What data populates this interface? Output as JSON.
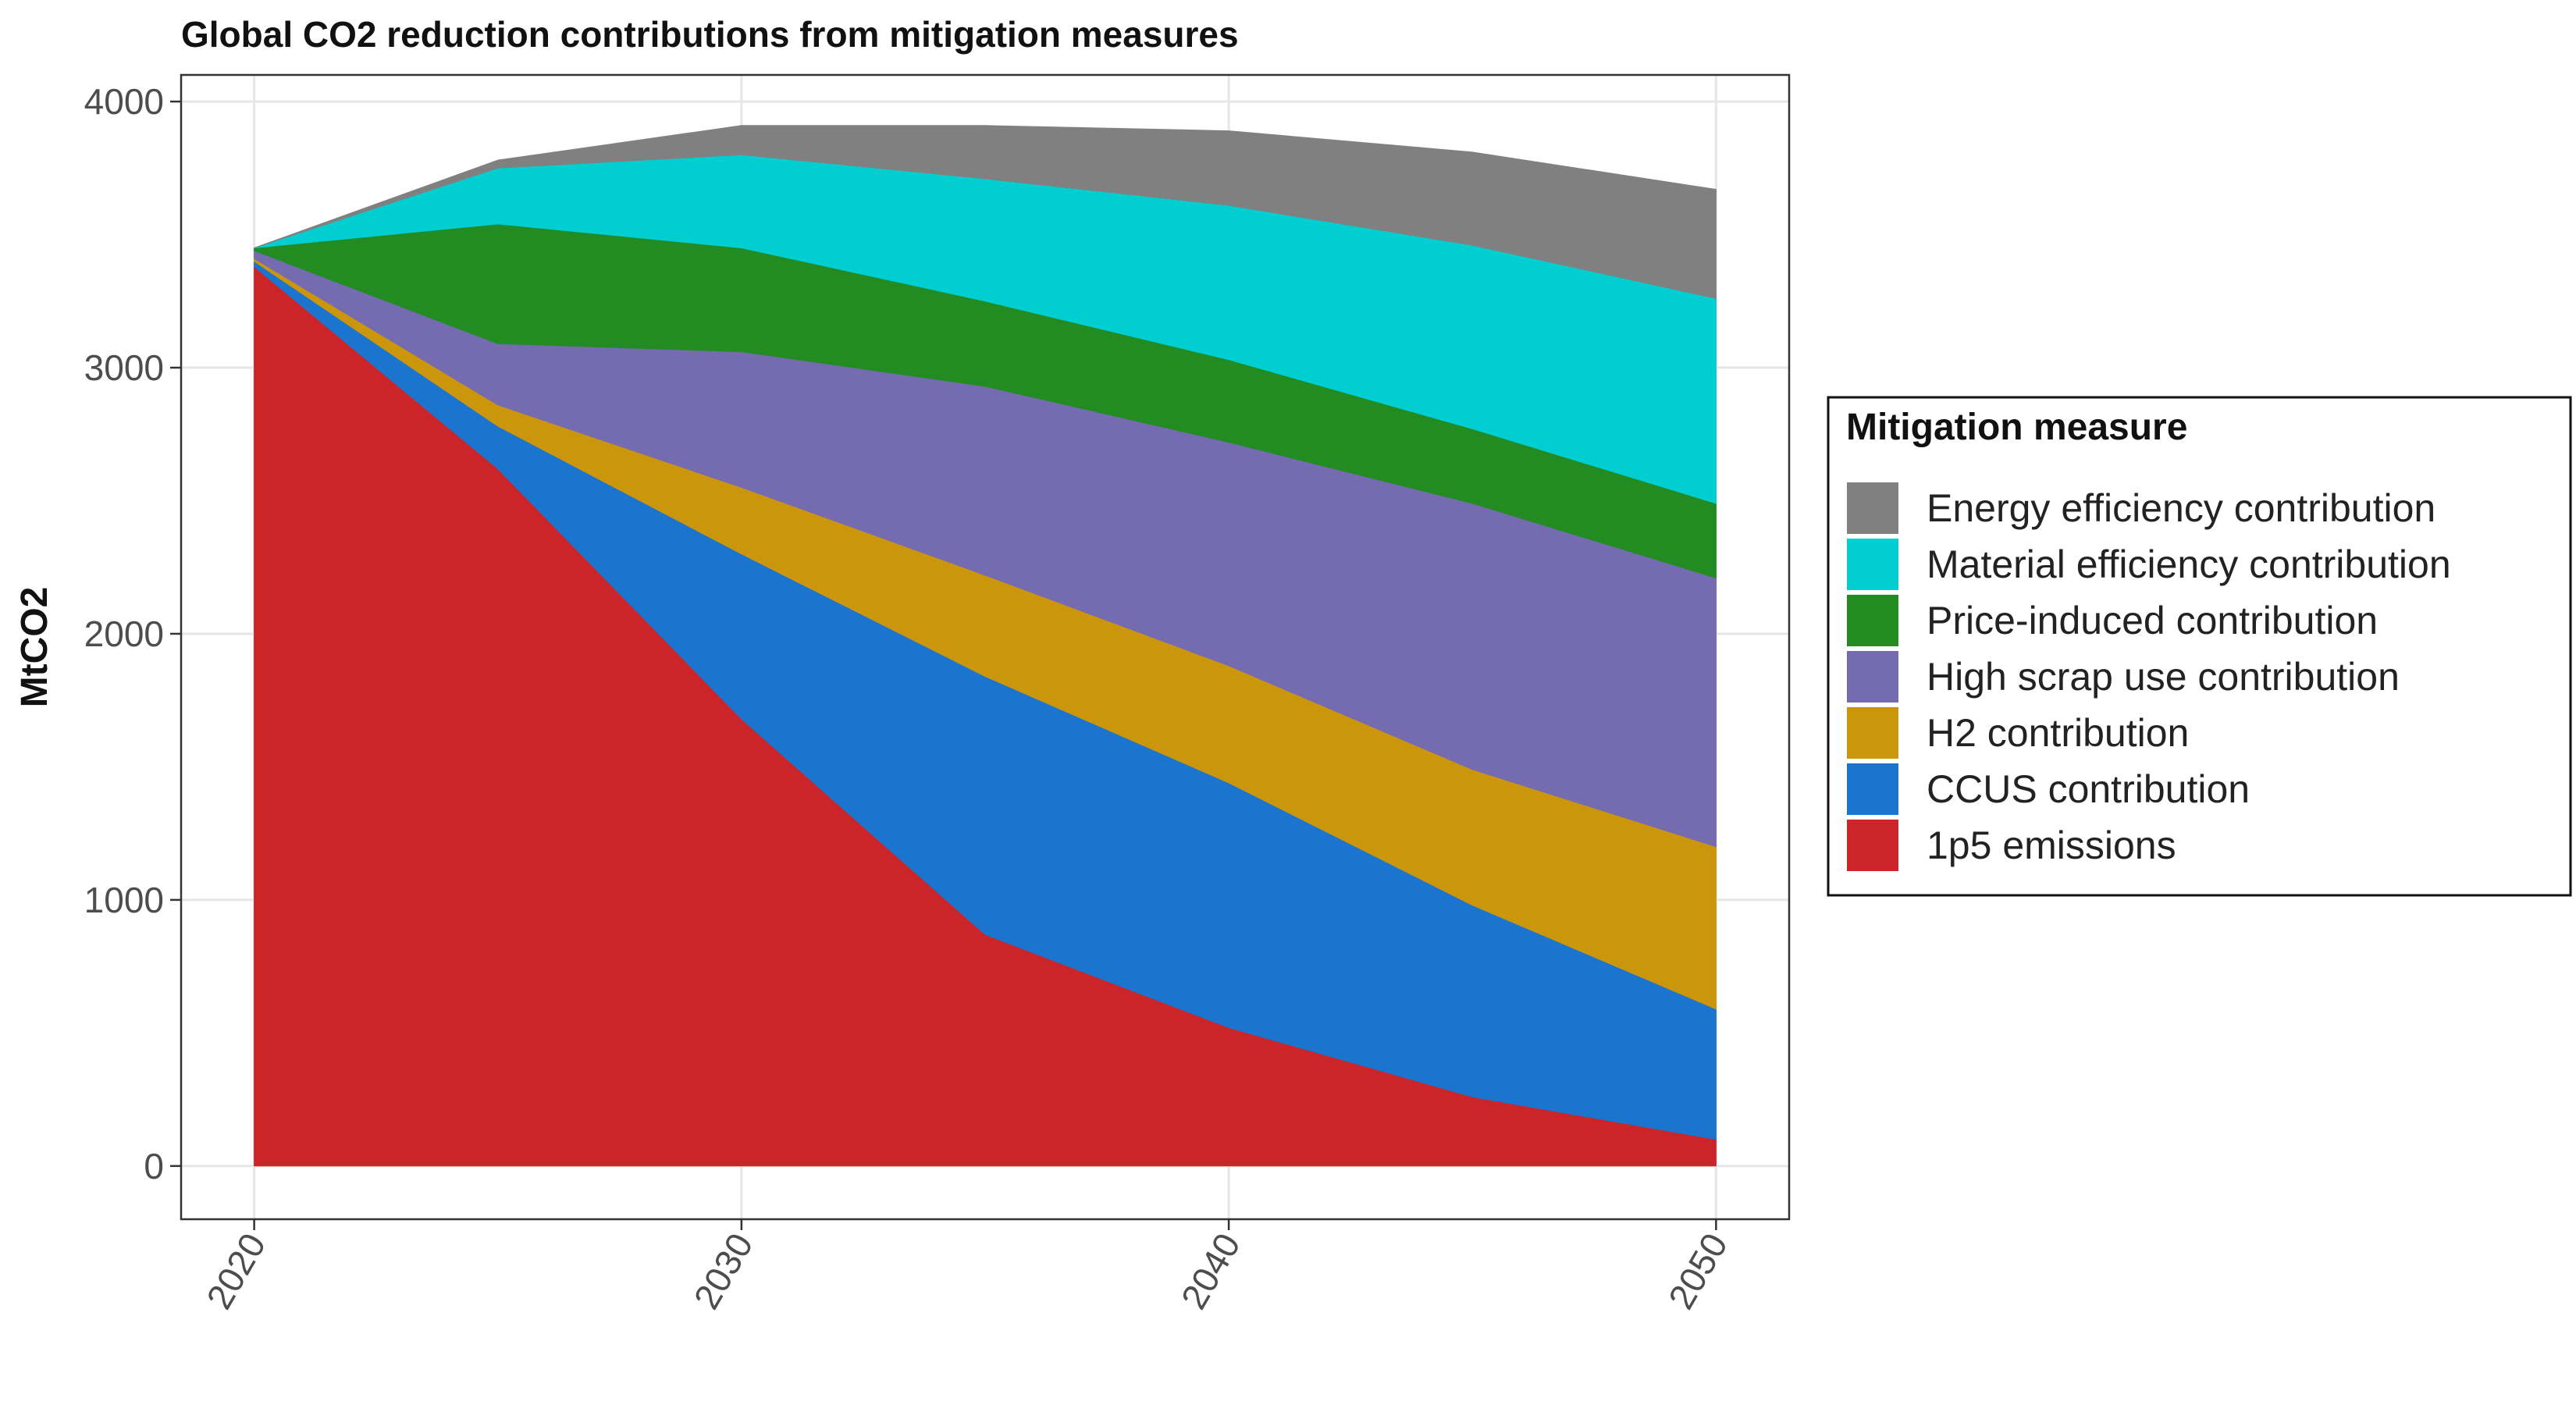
{
  "chart_data": {
    "type": "area",
    "title": "Global CO2 reduction contributions from mitigation measures",
    "xlabel": "",
    "ylabel": "MtCO2",
    "xlim": [
      2018.5,
      2051.5
    ],
    "ylim": [
      -200,
      4100
    ],
    "x": [
      2020,
      2025,
      2030,
      2035,
      2040,
      2045,
      2050
    ],
    "x_ticks": [
      "2020",
      "2030",
      "2040",
      "2050"
    ],
    "x_tick_values": [
      2020,
      2030,
      2040,
      2050
    ],
    "y_ticks": [
      "0",
      "1000",
      "2000",
      "3000",
      "4000"
    ],
    "y_tick_values": [
      0,
      1000,
      2000,
      3000,
      4000
    ],
    "grid": true,
    "stacked": true,
    "legend_title": "Mitigation measure",
    "legend_position": "right",
    "series": [
      {
        "name": "1p5 emissions",
        "color": "#CC2529",
        "values": [
          3380,
          2620,
          1680,
          870,
          520,
          260,
          100
        ]
      },
      {
        "name": "CCUS contribution",
        "color": "#1B75CE",
        "values": [
          20,
          160,
          620,
          970,
          920,
          720,
          490
        ]
      },
      {
        "name": "H2 contribution",
        "color": "#CC960C",
        "values": [
          10,
          80,
          250,
          380,
          440,
          510,
          610
        ]
      },
      {
        "name": "High scrap use contribution",
        "color": "#756BB1",
        "values": [
          30,
          230,
          510,
          710,
          840,
          1000,
          1010
        ]
      },
      {
        "name": "Price-induced contribution",
        "color": "#228B22",
        "values": [
          10,
          450,
          390,
          320,
          310,
          280,
          280
        ]
      },
      {
        "name": "Material efficiency contribution",
        "color": "#00CED1",
        "values": [
          0,
          210,
          350,
          460,
          580,
          690,
          770
        ]
      },
      {
        "name": "Energy efficiency contribution",
        "color": "#808080",
        "values": [
          0,
          30,
          110,
          200,
          280,
          350,
          410
        ]
      }
    ]
  }
}
